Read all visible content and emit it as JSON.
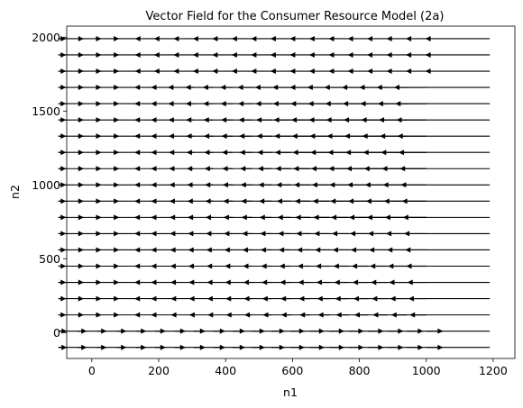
{
  "chart_data": {
    "type": "quiver",
    "title": "Vector Field for the Consumer Resource Model (2a)",
    "xlabel": "n1",
    "ylabel": "n2",
    "xlim": [
      -75,
      1265
    ],
    "ylim": [
      -175,
      2075
    ],
    "x_ticks": [
      0,
      200,
      400,
      600,
      800,
      1000,
      1200
    ],
    "y_ticks": [
      0,
      500,
      1000,
      1500,
      2000
    ],
    "grid_x": [
      -100,
      -42,
      16,
      74,
      132,
      189,
      247,
      305,
      363,
      421,
      479,
      537,
      595,
      653,
      711,
      768,
      826,
      884,
      942,
      1000
    ],
    "grid_y": [
      -100,
      10,
      120,
      230,
      340,
      450,
      560,
      670,
      780,
      890,
      1000,
      1110,
      1220,
      1330,
      1440,
      1550,
      1660,
      1770,
      1880,
      1990
    ],
    "arrow_color": "#000000",
    "grid": false
  }
}
